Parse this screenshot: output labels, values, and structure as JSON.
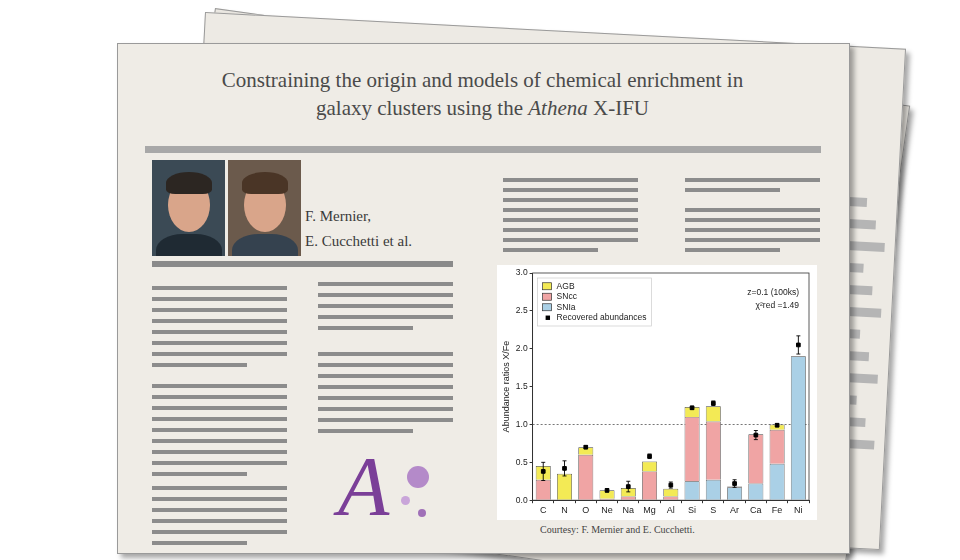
{
  "document": {
    "title_lines": [
      "Constraining the origin and models of chemical enrichment in",
      "galaxy clusters using the Athena X-IFU"
    ],
    "emphasis": "Athena",
    "authors": [
      "F. Mernier,",
      "E. Cucchetti et al."
    ],
    "logo": "A",
    "caption": "Courtesy: F. Mernier and E. Cucchetti."
  },
  "chart_data": {
    "type": "bar",
    "stacked": true,
    "grid": false,
    "legend": "top-left",
    "y_label": "Abundance ratios X/Fe",
    "annotations": [
      "z=0.1 (100ks)",
      "χ²red =1.49"
    ],
    "categories": [
      "C",
      "N",
      "O",
      "Ne",
      "Na",
      "Mg",
      "Al",
      "Si",
      "S",
      "Ar",
      "Ca",
      "Fe",
      "Ni"
    ],
    "series": [
      {
        "name": "AGB",
        "color": "#f3ea55",
        "values": [
          0.18,
          0.35,
          0.1,
          0.11,
          0.11,
          0.13,
          0.1,
          0.13,
          0.2,
          0,
          0,
          0.07,
          0
        ]
      },
      {
        "name": "SNcc",
        "color": "#f0a4a4",
        "values": [
          0.27,
          0,
          0.6,
          0.02,
          0.05,
          0.38,
          0.05,
          0.85,
          0.77,
          0.01,
          0.65,
          0.45,
          0
        ]
      },
      {
        "name": "SNIa",
        "color": "#aad0e6",
        "values": [
          0,
          0,
          0,
          0,
          0,
          0,
          0,
          0.25,
          0.27,
          0.17,
          0.22,
          0.48,
          1.9
        ]
      },
      {
        "name": "Recovered abundances",
        "type": "scatter",
        "marker": "square",
        "color": "#000000",
        "values": [
          0.38,
          0.42,
          0.7,
          0.13,
          0.18,
          0.58,
          0.2,
          1.22,
          1.28,
          0.22,
          0.86,
          0.99,
          2.05
        ],
        "errors": [
          0.12,
          0.1,
          0.02,
          0.02,
          0.07,
          0.03,
          0.04,
          0.02,
          0.03,
          0.05,
          0.06,
          0.02,
          0.12
        ]
      }
    ],
    "reference_line": {
      "value": 1.0,
      "line_style": "dashed"
    },
    "ylim": [
      0,
      3
    ],
    "yticks": [
      {
        "value": 0,
        "label": "0.0"
      },
      0.5,
      {
        "value": 1,
        "label": "1.0"
      },
      1.5,
      {
        "value": 2,
        "label": "2.0"
      },
      2.5,
      {
        "value": 3,
        "label": "3.0"
      }
    ]
  }
}
